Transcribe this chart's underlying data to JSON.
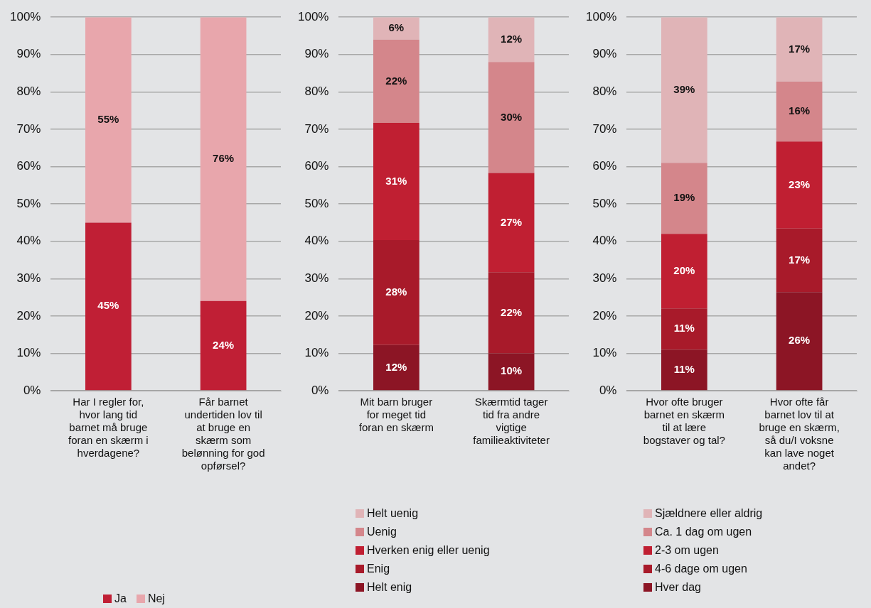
{
  "chart_data": [
    {
      "type": "bar",
      "stacked": true,
      "categories": [
        "Har I regler for, hvor lang tid barnet må bruge foran en skærm i hverdagene?",
        "Får barnet undertiden lov til at bruge en skærm som belønning for god opførsel?"
      ],
      "series": [
        {
          "name": "Ja",
          "color": "#c01f35",
          "values": [
            45,
            24
          ],
          "value_labels": [
            "45%",
            "24%"
          ]
        },
        {
          "name": "Nej",
          "color": "#e8a6ac",
          "values": [
            55,
            76
          ],
          "value_labels": [
            "55%",
            "76%"
          ]
        }
      ],
      "ylim": [
        0,
        100
      ],
      "yticks": [
        {
          "value": 0,
          "label": "0%"
        },
        {
          "value": 10,
          "label": "10%"
        },
        {
          "value": 20,
          "label": "20%"
        },
        {
          "value": 30,
          "label": "30%"
        },
        {
          "value": 40,
          "label": "40%"
        },
        {
          "value": 50,
          "label": "50%"
        },
        {
          "value": 60,
          "label": "60%"
        },
        {
          "value": 70,
          "label": "70%"
        },
        {
          "value": 80,
          "label": "80%"
        },
        {
          "value": 90,
          "label": "90%"
        },
        {
          "value": 100,
          "label": "100%"
        }
      ],
      "grid": "y",
      "legend": "bottom"
    },
    {
      "type": "bar",
      "stacked": true,
      "categories": [
        "Mit barn bruger for meget tid foran en skærm",
        "Skærmtid tager tid fra andre vigtige familieaktiviteter"
      ],
      "series": [
        {
          "name": "Helt enig",
          "color": "#8c1525",
          "values": [
            12.2,
            10
          ],
          "value_labels": [
            "12%",
            "10%"
          ]
        },
        {
          "name": "Enig",
          "color": "#a81a2a",
          "values": [
            28.1,
            21.7
          ],
          "value_labels": [
            "28%",
            "22%"
          ]
        },
        {
          "name": "Hverken enig eller uenig",
          "color": "#c01f32",
          "values": [
            31.4,
            26.6
          ],
          "value_labels": [
            "31%",
            "27%"
          ]
        },
        {
          "name": "Uenig",
          "color": "#d4868b",
          "values": [
            22.3,
            29.7
          ],
          "value_labels": [
            "22%",
            "30%"
          ]
        },
        {
          "name": "Helt uenig",
          "color": "#e0b4b7",
          "values": [
            6,
            12
          ],
          "value_labels": [
            "6%",
            "12%"
          ]
        }
      ],
      "ylim": [
        0,
        100
      ],
      "yticks": [
        {
          "value": 0,
          "label": "0%"
        },
        {
          "value": 10,
          "label": "10%"
        },
        {
          "value": 20,
          "label": "20%"
        },
        {
          "value": 30,
          "label": "30%"
        },
        {
          "value": 40,
          "label": "40%"
        },
        {
          "value": 50,
          "label": "50%"
        },
        {
          "value": 60,
          "label": "60%"
        },
        {
          "value": 70,
          "label": "70%"
        },
        {
          "value": 80,
          "label": "80%"
        },
        {
          "value": 90,
          "label": "90%"
        },
        {
          "value": 100,
          "label": "100%"
        }
      ],
      "grid": "y",
      "legend": "bottom"
    },
    {
      "type": "bar",
      "stacked": true,
      "categories": [
        "Hvor ofte bruger barnet en skærm til at lære bogstaver og tal?",
        "Hvor ofte får barnet lov til at bruge en skærm, så du/I voksne kan lave noget andet?"
      ],
      "series": [
        {
          "name": "Hver dag",
          "color": "#8c1525",
          "values": [
            11,
            26.4
          ],
          "value_labels": [
            "11%",
            "26%"
          ]
        },
        {
          "name": "4-6 dage om ugen",
          "color": "#a81a2a",
          "values": [
            11,
            17
          ],
          "value_labels": [
            "11%",
            "17%"
          ]
        },
        {
          "name": "2-3 om ugen",
          "color": "#c01f32",
          "values": [
            20,
            23.3
          ],
          "value_labels": [
            "20%",
            "23%"
          ]
        },
        {
          "name": "Ca. 1 dag om ugen",
          "color": "#d4868b",
          "values": [
            19,
            16.1
          ],
          "value_labels": [
            "19%",
            "16%"
          ]
        },
        {
          "name": "Sjældnere eller aldrig",
          "color": "#e0b4b7",
          "values": [
            39,
            17.2
          ],
          "value_labels": [
            "39%",
            "17%"
          ]
        }
      ],
      "ylim": [
        0,
        100
      ],
      "yticks": [
        {
          "value": 0,
          "label": "0%"
        },
        {
          "value": 10,
          "label": "10%"
        },
        {
          "value": 20,
          "label": "20%"
        },
        {
          "value": 30,
          "label": "30%"
        },
        {
          "value": 40,
          "label": "40%"
        },
        {
          "value": 50,
          "label": "50%"
        },
        {
          "value": 60,
          "label": "60%"
        },
        {
          "value": 70,
          "label": "70%"
        },
        {
          "value": 80,
          "label": "80%"
        },
        {
          "value": 90,
          "label": "90%"
        },
        {
          "value": 100,
          "label": "100%"
        }
      ],
      "grid": "y",
      "legend": "bottom"
    }
  ]
}
